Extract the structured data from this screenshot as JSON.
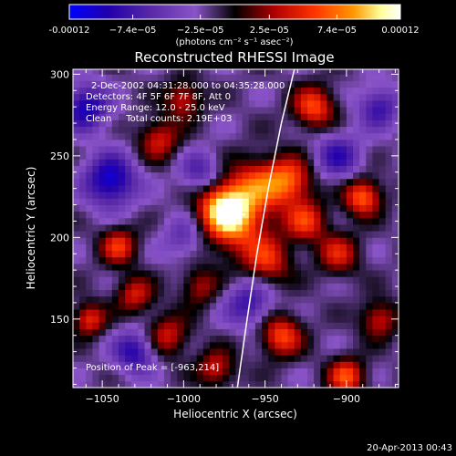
{
  "colorbar": {
    "tick_labels": [
      "-0.00012",
      "−7.4e−05",
      "−2.5e−05",
      "2.5e−05",
      "7.4e−05",
      "0.00012"
    ],
    "tick_values": [
      -0.00012,
      -7.4e-05,
      -2.5e-05,
      2.5e-05,
      7.4e-05,
      0.00012
    ],
    "range": [
      -0.00012,
      0.00012
    ],
    "units_label": "(photons cm⁻² s⁻¹ asec⁻²)",
    "colors": [
      "#0000ff",
      "#2200aa",
      "#5a2aa8",
      "#8a54c8",
      "#000000",
      "#b00000",
      "#ff3300",
      "#ff9900",
      "#ffff99",
      "#ffffff"
    ]
  },
  "annotations": {
    "time_range": "2-Dec-2002 04:31:28.000 to 04:35:28.000",
    "detectors": "Detectors: 4F 5F 6F 7F 8F, Att 0",
    "energy_range": "Energy Range: 12.0 - 25.0 keV",
    "clean": "Clean     Total counts: 2.19E+03",
    "peak": "Position of Peak = [-963,214]"
  },
  "footer": {
    "timestamp": "20-Apr-2013 00:43"
  },
  "chart_data": {
    "type": "heatmap",
    "title": "Reconstructed RHESSI Image",
    "xlabel": "Heliocentric X (arcsec)",
    "ylabel": "Heliocentric Y (arcsec)",
    "xlim": [
      -1068,
      -868
    ],
    "ylim": [
      108,
      303
    ],
    "x_ticks": [
      -1050,
      -1000,
      -950,
      -900
    ],
    "y_ticks": [
      150,
      200,
      250,
      300
    ],
    "x_tick_labels": [
      "−1050",
      "−1000",
      "−950",
      "−900"
    ],
    "y_tick_labels": [
      "150",
      "200",
      "250",
      "300"
    ],
    "peak_position": [
      -963,
      214
    ],
    "limb_curve": [
      [
        -967,
        108
      ],
      [
        -961,
        150
      ],
      [
        -955,
        190
      ],
      [
        -948,
        230
      ],
      [
        -940,
        270
      ],
      [
        -932,
        303
      ]
    ],
    "sources": [
      {
        "x": -975,
        "y": 218,
        "amp": 0.00012,
        "sigma": 11
      },
      {
        "x": -965,
        "y": 205,
        "amp": 6e-05,
        "sigma": 14
      },
      {
        "x": -955,
        "y": 232,
        "amp": 7e-05,
        "sigma": 12
      },
      {
        "x": -935,
        "y": 235,
        "amp": 8e-05,
        "sigma": 10
      },
      {
        "x": -925,
        "y": 210,
        "amp": 7e-05,
        "sigma": 9
      },
      {
        "x": -920,
        "y": 280,
        "amp": 8e-05,
        "sigma": 9
      },
      {
        "x": -948,
        "y": 185,
        "amp": 6e-05,
        "sigma": 10
      },
      {
        "x": -890,
        "y": 225,
        "amp": 9e-05,
        "sigma": 8
      },
      {
        "x": -905,
        "y": 190,
        "amp": 6e-05,
        "sigma": 9
      },
      {
        "x": -1015,
        "y": 260,
        "amp": 6e-05,
        "sigma": 9
      },
      {
        "x": -1040,
        "y": 195,
        "amp": 7e-05,
        "sigma": 8
      },
      {
        "x": -1030,
        "y": 165,
        "amp": 6e-05,
        "sigma": 8
      },
      {
        "x": -1058,
        "y": 150,
        "amp": 7e-05,
        "sigma": 7
      },
      {
        "x": -1010,
        "y": 140,
        "amp": 6e-05,
        "sigma": 9
      },
      {
        "x": -990,
        "y": 170,
        "amp": 5e-05,
        "sigma": 8
      },
      {
        "x": -940,
        "y": 140,
        "amp": 8e-05,
        "sigma": 9
      },
      {
        "x": -900,
        "y": 115,
        "amp": 8e-05,
        "sigma": 8
      },
      {
        "x": -880,
        "y": 150,
        "amp": 6e-05,
        "sigma": 8
      },
      {
        "x": -1000,
        "y": 285,
        "amp": 6e-05,
        "sigma": 8
      },
      {
        "x": -980,
        "y": 120,
        "amp": 6e-05,
        "sigma": 8
      },
      {
        "x": -1045,
        "y": 235,
        "amp": -9e-05,
        "sigma": 11
      },
      {
        "x": -1060,
        "y": 280,
        "amp": -8e-05,
        "sigma": 10
      },
      {
        "x": -1030,
        "y": 130,
        "amp": -7e-05,
        "sigma": 9
      },
      {
        "x": -905,
        "y": 250,
        "amp": -6e-05,
        "sigma": 10
      },
      {
        "x": -960,
        "y": 160,
        "amp": -6e-05,
        "sigma": 10
      },
      {
        "x": -990,
        "y": 240,
        "amp": -5e-05,
        "sigma": 9
      },
      {
        "x": -880,
        "y": 280,
        "amp": -6e-05,
        "sigma": 9
      },
      {
        "x": -1000,
        "y": 200,
        "amp": -4e-05,
        "sigma": 9
      }
    ]
  }
}
